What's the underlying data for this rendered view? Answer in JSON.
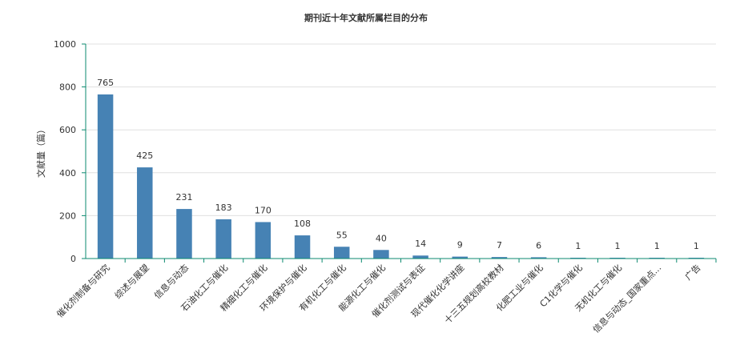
{
  "chart_data": {
    "type": "bar",
    "title": "期刊近十年文献所属栏目的分布",
    "xlabel": "",
    "ylabel": "文献量（篇）",
    "ylim": [
      0,
      1000
    ],
    "yticks": [
      "0",
      "200",
      "400",
      "600",
      "800",
      "1000"
    ],
    "categories": [
      "催化剂制备与研究",
      "综述与展望",
      "信息与动态",
      "石油化工与催化",
      "精细化工与催化",
      "环境保护与催化",
      "有机化工与催化",
      "能源化工与催化",
      "催化剂测试与表征",
      "现代催化化学讲座",
      "十三五规划高校教材",
      "化肥工业与催化",
      "C1化学与催化",
      "无机化工与催化",
      "信息与动态_国家重点...",
      "广告"
    ],
    "values": [
      765,
      425,
      231,
      183,
      170,
      108,
      55,
      40,
      14,
      9,
      7,
      6,
      1,
      1,
      1,
      1
    ],
    "bar_color": "#4682b4",
    "axis_color": "#0b8a6f",
    "grid": true,
    "legend": "none"
  }
}
